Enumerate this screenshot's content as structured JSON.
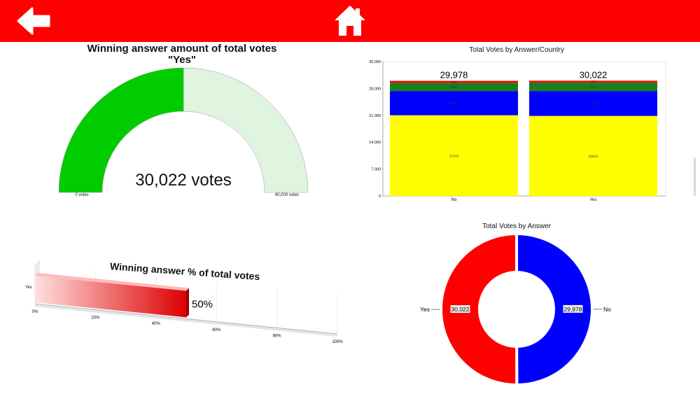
{
  "nav": {
    "back_icon": "arrow-left-icon",
    "home_icon": "home-icon"
  },
  "colors": {
    "topbar": "#ff0000",
    "gauge_fill": "#00cc00",
    "gauge_rest": "#dff5df",
    "yellow": "#ffff00",
    "blue": "#0000ff",
    "green": "#1a7f1a",
    "red": "#ff0000"
  },
  "gauge": {
    "title": "Winning answer amount of total votes",
    "answer": "\"Yes\"",
    "value_label": "30,022 votes",
    "min_label": "0 votes",
    "max_label": "60,000 votes",
    "value": 30022,
    "max": 60000
  },
  "chart_data": [
    {
      "type": "bar",
      "stacked": true,
      "title": "Total Votes by Answer/Country",
      "categories": [
        "No",
        "Yes"
      ],
      "totals_labels": [
        "29,978",
        "30,022"
      ],
      "y_ticks": [
        "0",
        "7,000",
        "14,000",
        "21,000",
        "28,000",
        "35,000"
      ],
      "ylim": [
        0,
        35000
      ],
      "series": [
        {
          "values": [
            21019,
            20842
          ],
          "color": "#ffff00",
          "labels": [
            "21019",
            "20842"
          ]
        },
        {
          "values": [
            6304,
            6484
          ],
          "color": "#0000ff",
          "labels": [
            "6304",
            "6484"
          ]
        },
        {
          "values": [
            2167,
            2239
          ],
          "color": "#1a7f1a",
          "labels": [
            "2167",
            "2239"
          ]
        },
        {
          "values": [
            488,
            457
          ],
          "color": "#ff0000",
          "labels": [
            "488",
            "457"
          ]
        }
      ]
    },
    {
      "type": "bar",
      "orientation": "horizontal",
      "title": "Winning answer % of total votes",
      "categories": [
        "Yes"
      ],
      "values": [
        50
      ],
      "value_label": "50%",
      "x_ticks": [
        "0%",
        "20%",
        "40%",
        "60%",
        "80%",
        "100%"
      ],
      "xlim": [
        0,
        100
      ]
    },
    {
      "type": "pie",
      "donut": true,
      "title": "Total Votes by Answer",
      "slices": [
        {
          "name": "Yes",
          "value": 30022,
          "label": "30,022",
          "color": "#ff0000"
        },
        {
          "name": "No",
          "value": 29978,
          "label": "29,978",
          "color": "#0000ff"
        }
      ]
    }
  ]
}
